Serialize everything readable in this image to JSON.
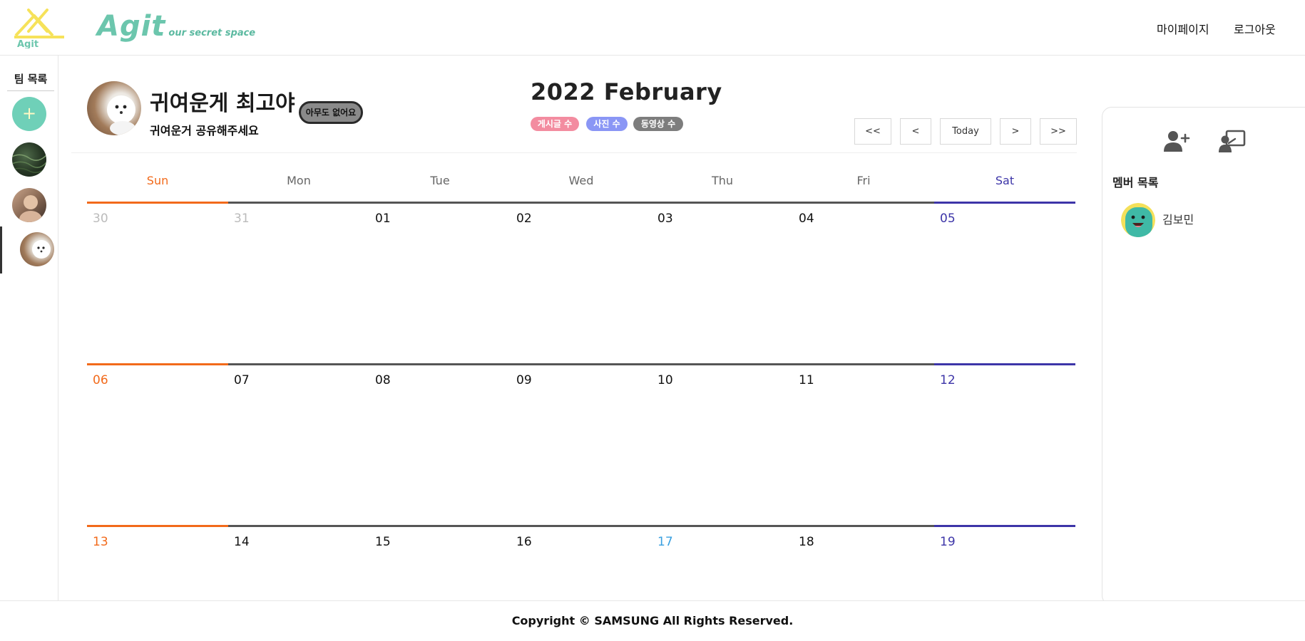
{
  "header": {
    "logo_small_text": "Agit",
    "logo_big_text": "Agit",
    "logo_tagline": "our secret space",
    "nav_mypage": "마이페이지",
    "nav_logout": "로그아웃"
  },
  "team_sidebar": {
    "title": "팀 목록",
    "add_symbol": "+"
  },
  "team": {
    "name": "귀여운게 최고야",
    "description": "귀여운거 공유해주세요",
    "status": "아무도 없어요"
  },
  "calendar": {
    "year_month": "2022 February",
    "legend": [
      {
        "label": "게시글 수",
        "color": "#f38ca0"
      },
      {
        "label": "사진 수",
        "color": "#8a96f5"
      },
      {
        "label": "동영상 수",
        "color": "#7d7d7d"
      }
    ],
    "nav": {
      "first": "<<",
      "prev": "<",
      "today": "Today",
      "next": ">",
      "last": ">>"
    },
    "weekdays": [
      "Sun",
      "Mon",
      "Tue",
      "Wed",
      "Thu",
      "Fri",
      "Sat"
    ],
    "weeks": [
      [
        "30",
        "31",
        "01",
        "02",
        "03",
        "04",
        "05"
      ],
      [
        "06",
        "07",
        "08",
        "09",
        "10",
        "11",
        "12"
      ],
      [
        "13",
        "14",
        "15",
        "16",
        "17",
        "18",
        "19"
      ]
    ],
    "colors": {
      "sunday": "#f26a1b",
      "saturday": "#3d35a8",
      "other_month": "#bbbbbb",
      "highlight": "#3aa0e0",
      "week_line": "#555555"
    }
  },
  "members": {
    "title": "멤버 목록",
    "list": [
      {
        "name": "김보민"
      }
    ]
  },
  "footer": {
    "copyright": "Copyright © SAMSUNG All Rights Reserved."
  }
}
